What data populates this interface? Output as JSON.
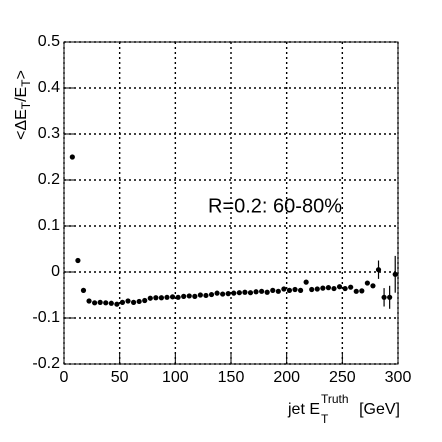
{
  "chart_data": {
    "type": "scatter",
    "annotation": "R=0.2: 60-80%",
    "ylabel": [
      "<ΔE",
      "T",
      "/E",
      "T",
      ">"
    ],
    "xlabel": [
      "jet E",
      "Truth",
      "T",
      "[GeV]"
    ],
    "color": "#000000",
    "grid": true,
    "xlim": [
      0,
      300
    ],
    "xticks": [
      0,
      50,
      100,
      150,
      200,
      250,
      300
    ],
    "ylim": [
      -0.2,
      0.5
    ],
    "yticks": [
      -0.2,
      -0.1,
      0,
      0.1,
      0.2,
      0.3,
      0.4,
      0.5
    ],
    "x": [
      7.5,
      12.5,
      17.5,
      22.5,
      27.5,
      32.5,
      37.5,
      42.5,
      47.5,
      52.5,
      57.5,
      62.5,
      67.5,
      72.5,
      77.5,
      82.5,
      87.5,
      92.5,
      97.5,
      102.5,
      107.5,
      112.5,
      117.5,
      122.5,
      127.5,
      132.5,
      137.5,
      142.5,
      147.5,
      152.5,
      157.5,
      162.5,
      167.5,
      172.5,
      177.5,
      182.5,
      187.5,
      192.5,
      197.5,
      202.5,
      207.5,
      212.5,
      217.5,
      222.5,
      227.5,
      232.5,
      237.5,
      242.5,
      247.5,
      252.5,
      257.5,
      262.5,
      267.5,
      272.5,
      277.5,
      282.5,
      287.5,
      292.5,
      297.5
    ],
    "values": [
      0.25,
      0.025,
      -0.04,
      -0.063,
      -0.067,
      -0.066,
      -0.067,
      -0.068,
      -0.07,
      -0.066,
      -0.063,
      -0.066,
      -0.064,
      -0.062,
      -0.057,
      -0.056,
      -0.056,
      -0.055,
      -0.054,
      -0.055,
      -0.053,
      -0.052,
      -0.053,
      -0.05,
      -0.051,
      -0.049,
      -0.046,
      -0.048,
      -0.047,
      -0.046,
      -0.045,
      -0.044,
      -0.045,
      -0.043,
      -0.042,
      -0.044,
      -0.04,
      -0.042,
      -0.037,
      -0.04,
      -0.038,
      -0.04,
      -0.022,
      -0.038,
      -0.037,
      -0.035,
      -0.034,
      -0.036,
      -0.032,
      -0.036,
      -0.033,
      -0.042,
      -0.041,
      -0.024,
      -0.03,
      0.005,
      -0.055,
      -0.055,
      -0.005
    ],
    "errors": [
      0.002,
      0.002,
      0.002,
      0.002,
      0.002,
      0.002,
      0.002,
      0.002,
      0.002,
      0.002,
      0.002,
      0.002,
      0.002,
      0.002,
      0.002,
      0.002,
      0.002,
      0.002,
      0.002,
      0.002,
      0.002,
      0.002,
      0.002,
      0.002,
      0.002,
      0.002,
      0.002,
      0.002,
      0.002,
      0.002,
      0.002,
      0.002,
      0.002,
      0.002,
      0.002,
      0.002,
      0.002,
      0.002,
      0.002,
      0.002,
      0.002,
      0.002,
      0.002,
      0.002,
      0.002,
      0.002,
      0.002,
      0.002,
      0.002,
      0.002,
      0.002,
      0.003,
      0.003,
      0.004,
      0.005,
      0.02,
      0.02,
      0.025,
      0.04
    ]
  }
}
